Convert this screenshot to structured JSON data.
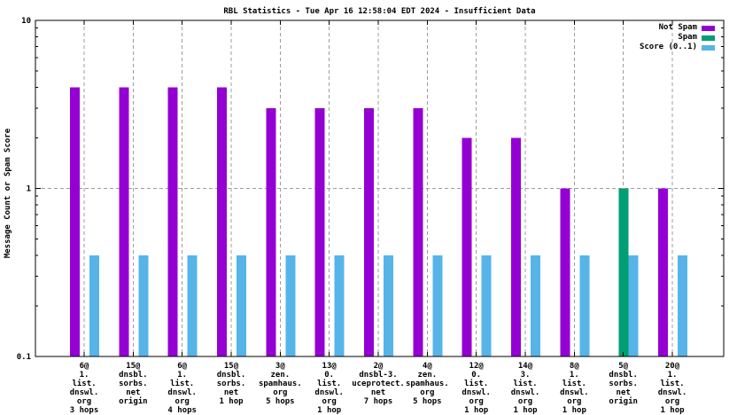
{
  "title": "RBL Statistics - Tue Apr 16 12:58:04 EDT 2024 - Insufficient Data",
  "ylabel": "Message Count or Spam Score",
  "legend": [
    {
      "label": "Not Spam",
      "color": "#9400d3"
    },
    {
      "label": "Spam",
      "color": "#009e73"
    },
    {
      "label": "Score (0..1)",
      "color": "#56b4e9"
    }
  ],
  "chart_data": {
    "type": "bar",
    "title": "RBL Statistics - Tue Apr 16 12:58:04 EDT 2024 - Insufficient Data",
    "xlabel": "",
    "ylabel": "Message Count or Spam Score",
    "y_scale": "log",
    "ylim": [
      0.1,
      10
    ],
    "y_major_ticks": [
      {
        "value": 0.1,
        "label": "0.1"
      },
      {
        "value": 1,
        "label": "1"
      },
      {
        "value": 10,
        "label": "10"
      }
    ],
    "y_minor_ticks": [
      0.2,
      0.3,
      0.4,
      0.5,
      0.6,
      0.7,
      0.8,
      0.9,
      2,
      3,
      4,
      5,
      6,
      7,
      8,
      9
    ],
    "grid": {
      "vertical": true,
      "horizontal_values": [
        1
      ],
      "style": "dashed",
      "color": "#9c9c9c"
    },
    "legend_position": "top-right-inside",
    "categories": [
      {
        "lines": [
          "6@",
          "1.",
          "list.",
          "dnswl.",
          "org",
          "3 hops"
        ]
      },
      {
        "lines": [
          "15@",
          "dnsbl.",
          "sorbs.",
          "net",
          "origin"
        ]
      },
      {
        "lines": [
          "6@",
          "1.",
          "list.",
          "dnswl.",
          "org",
          "4 hops"
        ]
      },
      {
        "lines": [
          "15@",
          "dnsbl.",
          "sorbs.",
          "net",
          "1 hop"
        ]
      },
      {
        "lines": [
          "3@",
          "zen.",
          "spamhaus.",
          "org",
          "5 hops"
        ]
      },
      {
        "lines": [
          "13@",
          "0.",
          "list.",
          "dnswl.",
          "org",
          "1 hop"
        ]
      },
      {
        "lines": [
          "2@",
          "dnsbl-3.",
          "uceprotect.",
          "net",
          "7 hops"
        ]
      },
      {
        "lines": [
          "4@",
          "zen.",
          "spamhaus.",
          "org",
          "5 hops"
        ]
      },
      {
        "lines": [
          "12@",
          "0.",
          "list.",
          "dnswl.",
          "org",
          "1 hop"
        ]
      },
      {
        "lines": [
          "14@",
          "3.",
          "list.",
          "dnswl.",
          "org",
          "1 hop"
        ]
      },
      {
        "lines": [
          "8@",
          "1.",
          "list.",
          "dnswl.",
          "org",
          "1 hop"
        ]
      },
      {
        "lines": [
          "5@",
          "dnsbl.",
          "sorbs.",
          "net",
          "origin"
        ]
      },
      {
        "lines": [
          "20@",
          "1.",
          "list.",
          "dnswl.",
          "org",
          "1 hop"
        ]
      }
    ],
    "series": [
      {
        "name": "Not Spam",
        "color": "#9400d3",
        "values": [
          4,
          4,
          4,
          4,
          3,
          3,
          3,
          3,
          2,
          2,
          1,
          null,
          1
        ]
      },
      {
        "name": "Spam",
        "color": "#009e73",
        "values": [
          null,
          null,
          null,
          null,
          null,
          null,
          null,
          null,
          null,
          null,
          null,
          1,
          null
        ]
      },
      {
        "name": "Score (0..1)",
        "color": "#56b4e9",
        "values": [
          0.4,
          0.4,
          0.4,
          0.4,
          0.4,
          0.4,
          0.4,
          0.4,
          0.4,
          0.4,
          0.4,
          0.4,
          0.4
        ]
      }
    ]
  }
}
